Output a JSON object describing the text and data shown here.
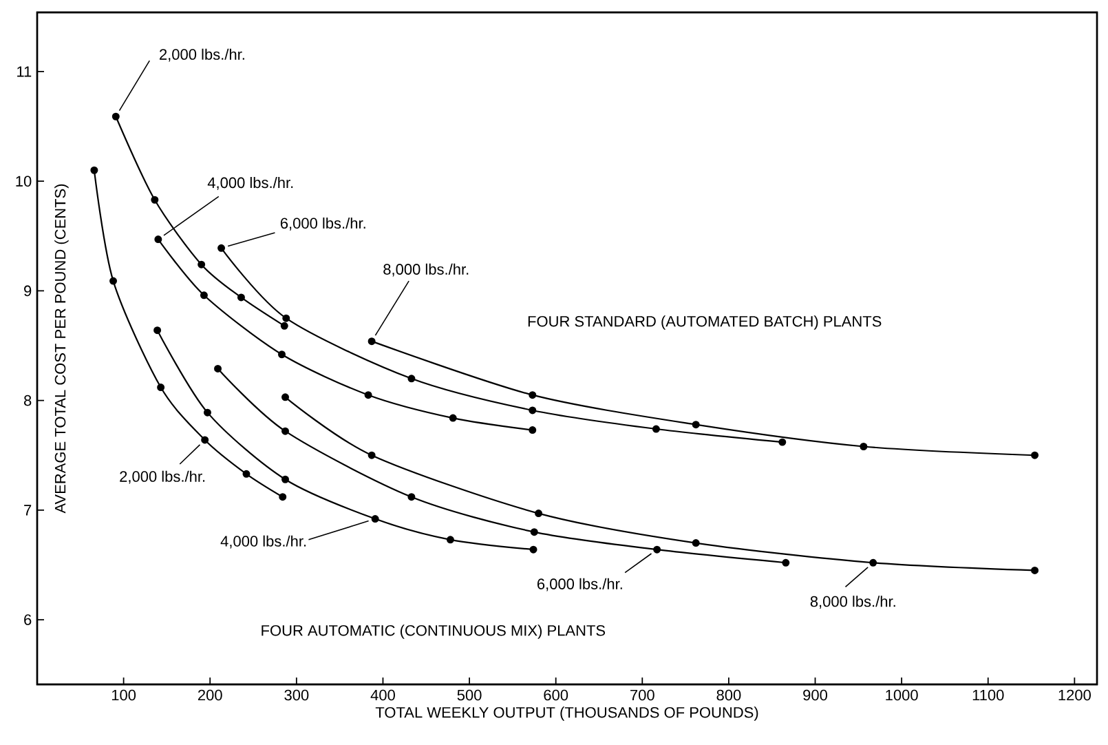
{
  "chart_data": {
    "type": "line",
    "xlabel": "TOTAL WEEKLY OUTPUT (THOUSANDS OF POUNDS)",
    "ylabel": "AVERAGE TOTAL COST PER POUND (CENTS)",
    "xlim": [
      0,
      1226
    ],
    "ylim": [
      5.41,
      11.54
    ],
    "xticks": [
      100,
      200,
      300,
      400,
      500,
      600,
      700,
      800,
      900,
      1000,
      1100,
      1200
    ],
    "yticks": [
      6,
      7,
      8,
      9,
      10,
      11
    ],
    "marker": "circle",
    "line_style": "solid",
    "grid": false,
    "series": [
      {
        "color": "#000000",
        "x": [
          91,
          136,
          190,
          236,
          286
        ],
        "values": [
          10.59,
          9.83,
          9.24,
          8.94,
          8.68
        ]
      },
      {
        "color": "#000000",
        "x": [
          140,
          193,
          283,
          383,
          481,
          573
        ],
        "values": [
          9.47,
          8.96,
          8.42,
          8.05,
          7.84,
          7.73
        ]
      },
      {
        "color": "#000000",
        "x": [
          213,
          288,
          433,
          573,
          716,
          862
        ],
        "values": [
          9.39,
          8.75,
          8.2,
          7.91,
          7.74,
          7.62
        ]
      },
      {
        "color": "#000000",
        "x": [
          387,
          573,
          762,
          956,
          1154
        ],
        "values": [
          8.54,
          8.05,
          7.78,
          7.58,
          7.5
        ]
      },
      {
        "color": "#000000",
        "x": [
          66,
          88,
          143,
          194,
          242,
          284
        ],
        "values": [
          10.1,
          9.09,
          8.12,
          7.64,
          7.33,
          7.12
        ]
      },
      {
        "color": "#000000",
        "x": [
          139,
          197,
          287,
          391,
          478,
          574
        ],
        "values": [
          8.64,
          7.89,
          7.28,
          6.92,
          6.73,
          6.64
        ]
      },
      {
        "color": "#000000",
        "x": [
          209,
          287,
          433,
          575,
          717,
          866
        ],
        "values": [
          8.29,
          7.72,
          7.12,
          6.8,
          6.64,
          6.52
        ]
      },
      {
        "color": "#000000",
        "x": [
          287,
          387,
          580,
          762,
          967,
          1154
        ],
        "values": [
          8.03,
          7.5,
          6.97,
          6.7,
          6.52,
          6.45
        ]
      }
    ],
    "annotations": [
      {
        "text": "2,000 lbs./hr.",
        "x": 91,
        "y": 10.59
      },
      {
        "text": "4,000 lbs./hr.",
        "x": 140,
        "y": 9.47
      },
      {
        "text": "6,000 lbs./hr.",
        "x": 213,
        "y": 9.39
      },
      {
        "text": "8,000 lbs./hr.",
        "x": 387,
        "y": 8.54
      },
      "FOUR STANDARD (AUTOMATED BATCH) PLANTS",
      {
        "text": "2,000 lbs./hr.",
        "x": 194,
        "y": 7.64
      },
      {
        "text": "4,000 lbs./hr.",
        "x": 391,
        "y": 6.92
      },
      {
        "text": "6,000 lbs./hr.",
        "x": 717,
        "y": 6.64
      },
      {
        "text": "8,000 lbs./hr.",
        "x": 967,
        "y": 6.52
      },
      "FOUR AUTOMATIC (CONTINUOUS MIX) PLANTS"
    ]
  }
}
